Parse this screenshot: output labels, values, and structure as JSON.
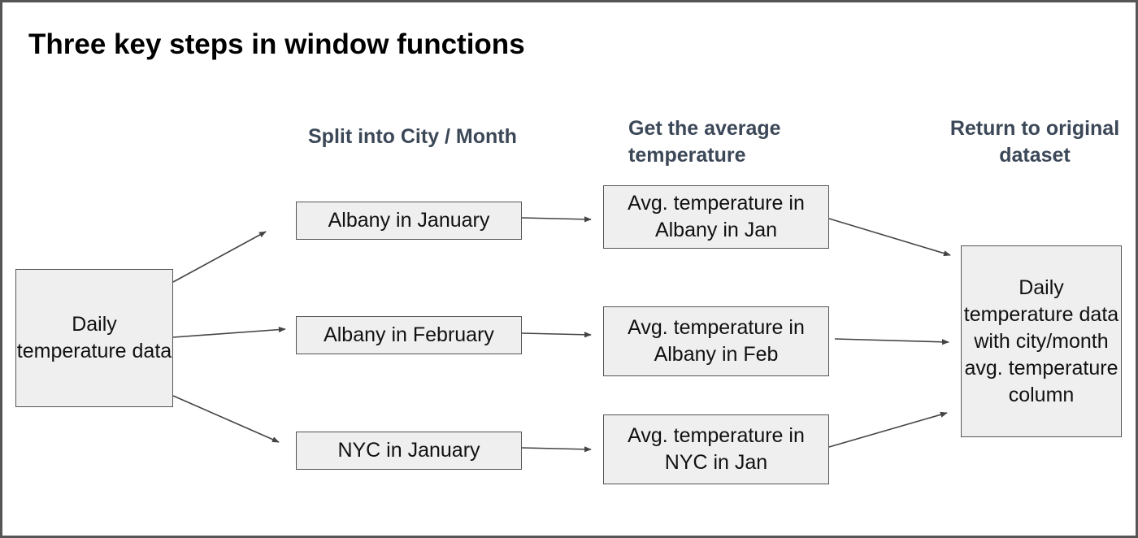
{
  "title": "Three key steps in window functions",
  "headings": {
    "split": "Split into City / Month",
    "average": "Get the average temperature",
    "return": "Return to original dataset"
  },
  "boxes": {
    "daily": "Daily temperature data",
    "albany_jan": "Albany in January",
    "albany_feb": "Albany in February",
    "nyc_jan": "NYC in January",
    "avg_albany_jan": "Avg. temperature in Albany in Jan",
    "avg_albany_feb": "Avg. temperature in Albany in Feb",
    "avg_nyc_jan": "Avg. temperature in NYC in Jan",
    "result": "Daily temperature data with city/month avg. temperature column"
  },
  "colors": {
    "box_fill": "#efefef",
    "box_border": "#555555",
    "heading_text": "#3c4858",
    "arrow": "#444444"
  }
}
